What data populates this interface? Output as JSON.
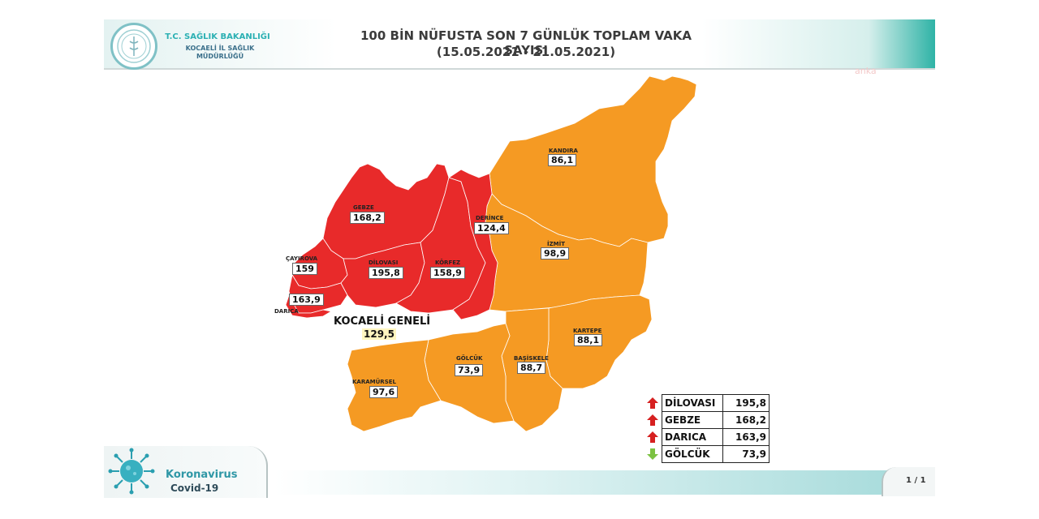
{
  "header": {
    "org_line1": "T.C. SAĞLIK BAKANLIĞI",
    "org_line2": "KOCAELİ İL SAĞLIK",
    "org_line3": "MÜDÜRLÜĞÜ",
    "title_line1": "100 BİN NÜFUSTA SON 7 GÜNLÜK TOPLAM VAKA SAYISI",
    "title_line2": "(15.05.2021 - 21.05.2021)"
  },
  "watermark": "anka",
  "map": {
    "colors": {
      "red": "#e82a2a",
      "orange": "#f59a23",
      "border": "#ffffff"
    },
    "districts": [
      {
        "name": "GEBZE",
        "value": "168,2",
        "level": "red"
      },
      {
        "name": "ÇAYIROVA",
        "value": "159",
        "level": "red"
      },
      {
        "name": "DARICA",
        "value": "163,9",
        "level": "red"
      },
      {
        "name": "DİLOVASI",
        "value": "195,8",
        "level": "red"
      },
      {
        "name": "KÖRFEZ",
        "value": "158,9",
        "level": "red"
      },
      {
        "name": "DERİNCE",
        "value": "124,4",
        "level": "red"
      },
      {
        "name": "KANDIRA",
        "value": "86,1",
        "level": "orange"
      },
      {
        "name": "İZMİT",
        "value": "98,9",
        "level": "orange"
      },
      {
        "name": "KARTEPE",
        "value": "88,1",
        "level": "orange"
      },
      {
        "name": "BAŞİSKELE",
        "value": "88,7",
        "level": "orange"
      },
      {
        "name": "GÖLCÜK",
        "value": "73,9",
        "level": "orange"
      },
      {
        "name": "KARAMÜRSEL",
        "value": "97,6",
        "level": "orange"
      }
    ],
    "province_label": "KOCAELİ GENELİ",
    "province_value": "129,5"
  },
  "legend": {
    "rows": [
      {
        "name": "DİLOVASI",
        "value": "195,8",
        "arrow": "up",
        "arrow_color": "#d62020"
      },
      {
        "name": "GEBZE",
        "value": "168,2",
        "arrow": "up",
        "arrow_color": "#d62020"
      },
      {
        "name": "DARICA",
        "value": "163,9",
        "arrow": "up",
        "arrow_color": "#d62020"
      },
      {
        "name": "GÖLCÜK",
        "value": "73,9",
        "arrow": "down",
        "arrow_color": "#7cc242"
      }
    ]
  },
  "footer": {
    "corona_line1": "Koronavirus",
    "corona_line2": "Covid-19",
    "page": "1 / 1"
  }
}
